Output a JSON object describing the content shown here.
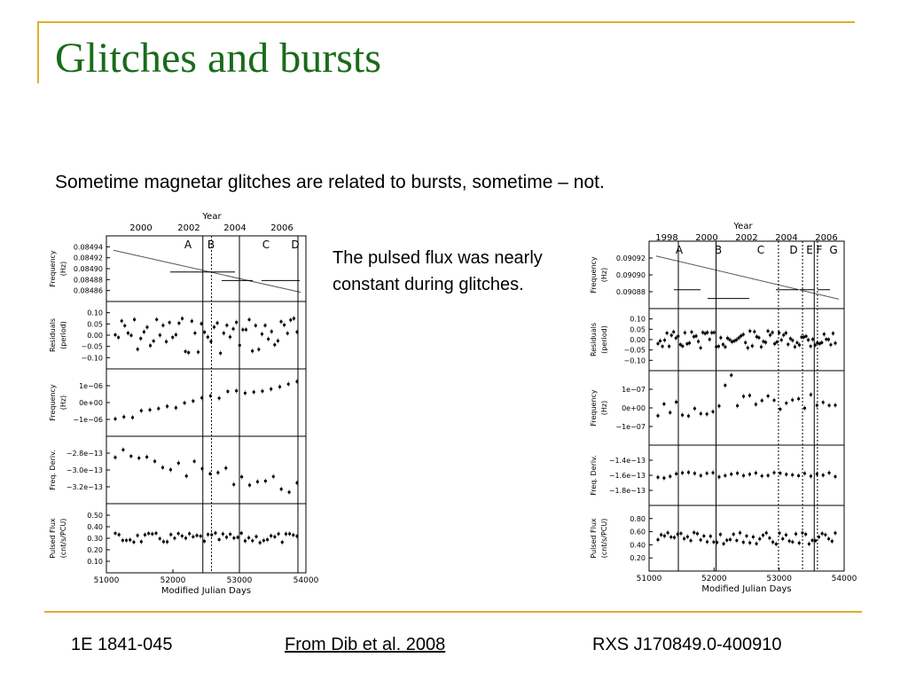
{
  "slide": {
    "title": "Glitches and bursts",
    "subtitle": "Sometime magnetar glitches are related to bursts, sometime – not.",
    "note": "The pulsed flux was nearly constant during glitches.",
    "footer": {
      "left": "1E 1841-045",
      "center": "From Dib et al. 2008",
      "right": "RXS J170849.0-400910"
    },
    "colors": {
      "accent_bar": "#e0ac2c",
      "title": "#1a6b1a"
    }
  },
  "figures": [
    {
      "year_label": "Year",
      "xlabel": "Modified Julian Days",
      "x_ticks": [
        "51000",
        "52000",
        "53000",
        "54000"
      ],
      "year_ticks": [
        "2000",
        "2002",
        "2004",
        "2006"
      ],
      "glitch_letters": [
        "A",
        "B",
        "C",
        "D"
      ],
      "panels": [
        {
          "ylabel": [
            "Frequency",
            "(Hz)"
          ],
          "ticks": [
            "0.08494",
            "0.08492",
            "0.08490",
            "0.08488",
            "0.08486"
          ]
        },
        {
          "ylabel": [
            "Residuals",
            "(period)"
          ],
          "ticks": [
            "0.10",
            "0.05",
            "0.00",
            "−0.05",
            "−0.10"
          ]
        },
        {
          "ylabel": [
            "Frequency",
            "(Hz)"
          ],
          "ticks": [
            "1e−06",
            "0e+00",
            "−1e−06"
          ]
        },
        {
          "ylabel": [
            "Freq. Deriv."
          ],
          "ticks": [
            "−2.8e−13",
            "−3.0e−13",
            "−3.2e−13"
          ]
        },
        {
          "ylabel": [
            "Pulsed Flux",
            "(cnt/s/PCU)"
          ],
          "ticks": [
            "0.50",
            "0.40",
            "0.30",
            "0.20",
            "0.10"
          ]
        }
      ]
    },
    {
      "year_label": "Year",
      "xlabel": "Modified Julian Days",
      "x_ticks": [
        "51000",
        "52000",
        "53000",
        "54000"
      ],
      "year_ticks": [
        "1998",
        "2000",
        "2002",
        "2004",
        "2006"
      ],
      "glitch_letters": [
        "A",
        "B",
        "C",
        "D",
        "E",
        "F",
        "G"
      ],
      "panels": [
        {
          "ylabel": [
            "Frequency",
            "(Hz)"
          ],
          "ticks": [
            "0.09092",
            "0.09090",
            "0.09088"
          ]
        },
        {
          "ylabel": [
            "Residuals",
            "(period)"
          ],
          "ticks": [
            "0.10",
            "0.05",
            "0.00",
            "−0.05",
            "−0.10"
          ]
        },
        {
          "ylabel": [
            "Frequency",
            "(Hz)"
          ],
          "ticks": [
            "1e−07",
            "0e+00",
            "−1e−07"
          ]
        },
        {
          "ylabel": [
            "Freq. Deriv."
          ],
          "ticks": [
            "−1.4e−13",
            "−1.6e−13",
            "−1.8e−13"
          ]
        },
        {
          "ylabel": [
            "Pulsed Flux",
            "(cnt/s/PCU)"
          ],
          "ticks": [
            "0.80",
            "0.60",
            "0.40",
            "0.20"
          ]
        }
      ]
    }
  ]
}
